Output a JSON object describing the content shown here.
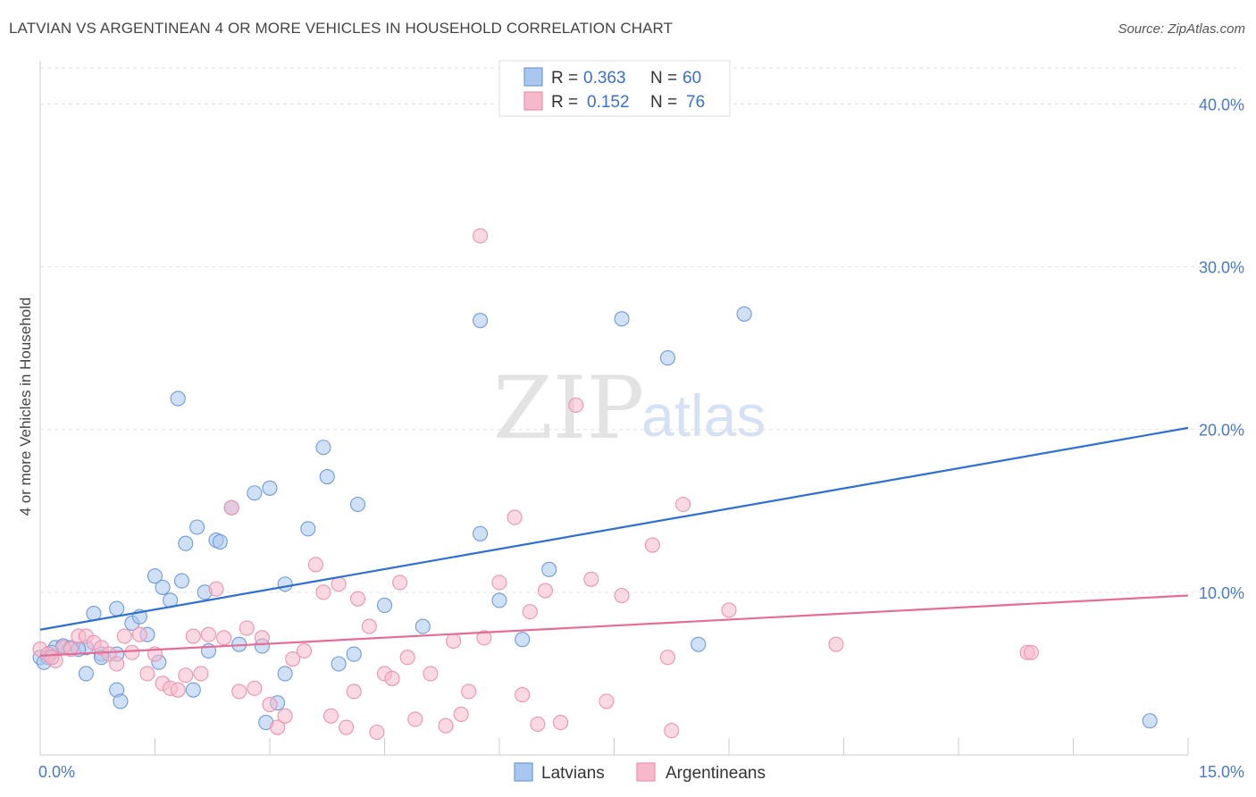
{
  "header": {
    "title": "LATVIAN VS ARGENTINEAN 4 OR MORE VEHICLES IN HOUSEHOLD CORRELATION CHART",
    "source": "Source: ZipAtlas.com"
  },
  "watermark": {
    "zip": "ZIP",
    "atlas": "atlas"
  },
  "legend": {
    "items": [
      {
        "r_label": "R =",
        "r_value": "0.363",
        "n_label": "N =",
        "n_value": "60",
        "color": "#a9c6ee"
      },
      {
        "r_label": "R =",
        "r_value": "0.152",
        "n_label": "N =",
        "n_value": "76",
        "color": "#f6b9cc"
      }
    ]
  },
  "bottom_legend": {
    "latvians": "Latvians",
    "argentineans": "Argentineans"
  },
  "colors": {
    "latvian_fill": "#a9c6ee",
    "latvian_stroke": "#6f9bd8",
    "latvian_line": "#2f6fd0",
    "argentinean_fill": "#f6b9cc",
    "argentinean_stroke": "#e994b0",
    "argentinean_line": "#e46d98",
    "tick": "#4a78c9"
  },
  "chart_data": {
    "type": "scatter",
    "title": "LATVIAN VS ARGENTINEAN 4 OR MORE VEHICLES IN HOUSEHOLD CORRELATION CHART",
    "xlabel": "",
    "ylabel": "4 or more Vehicles in Household",
    "xlim": [
      0,
      15
    ],
    "ylim": [
      0,
      42
    ],
    "x_tick_labels": [
      "0.0%",
      "15.0%"
    ],
    "y_ticks": [
      10,
      20,
      30,
      40
    ],
    "y_tick_labels": [
      "10.0%",
      "20.0%",
      "30.0%",
      "40.0%"
    ],
    "grid": "horizontal dashed",
    "legend_position": "top-center",
    "series": [
      {
        "name": "Latvians",
        "trend": [
          [
            0,
            7.7
          ],
          [
            15,
            20.1
          ]
        ],
        "points": [
          [
            0.0,
            6.0
          ],
          [
            0.1,
            6.0
          ],
          [
            0.2,
            6.6
          ],
          [
            0.3,
            6.7
          ],
          [
            0.4,
            6.6
          ],
          [
            0.6,
            6.6
          ],
          [
            0.6,
            5.0
          ],
          [
            0.8,
            6.2
          ],
          [
            0.8,
            6.0
          ],
          [
            0.7,
            8.7
          ],
          [
            1.0,
            6.2
          ],
          [
            1.0,
            9.0
          ],
          [
            1.0,
            4.0
          ],
          [
            1.05,
            3.3
          ],
          [
            1.2,
            8.1
          ],
          [
            1.3,
            8.5
          ],
          [
            1.4,
            7.4
          ],
          [
            1.5,
            11.0
          ],
          [
            1.55,
            5.7
          ],
          [
            1.6,
            10.3
          ],
          [
            1.7,
            9.5
          ],
          [
            1.8,
            21.9
          ],
          [
            1.85,
            10.7
          ],
          [
            1.9,
            13.0
          ],
          [
            2.0,
            4.0
          ],
          [
            2.05,
            14.0
          ],
          [
            2.15,
            10.0
          ],
          [
            2.2,
            6.4
          ],
          [
            2.3,
            13.2
          ],
          [
            2.35,
            13.1
          ],
          [
            2.5,
            15.2
          ],
          [
            2.6,
            6.8
          ],
          [
            2.8,
            16.1
          ],
          [
            2.9,
            6.7
          ],
          [
            3.0,
            16.4
          ],
          [
            3.1,
            3.2
          ],
          [
            3.2,
            5.0
          ],
          [
            3.2,
            10.5
          ],
          [
            3.5,
            13.9
          ],
          [
            3.7,
            18.9
          ],
          [
            3.75,
            17.1
          ],
          [
            3.9,
            5.6
          ],
          [
            4.1,
            6.2
          ],
          [
            4.15,
            15.4
          ],
          [
            4.5,
            9.2
          ],
          [
            5.0,
            7.9
          ],
          [
            5.75,
            13.6
          ],
          [
            5.75,
            26.7
          ],
          [
            6.0,
            9.5
          ],
          [
            6.3,
            7.1
          ],
          [
            6.65,
            11.4
          ],
          [
            7.6,
            26.8
          ],
          [
            8.2,
            24.4
          ],
          [
            8.6,
            6.8
          ],
          [
            9.2,
            27.1
          ],
          [
            14.5,
            2.1
          ],
          [
            2.95,
            2.0
          ],
          [
            0.05,
            5.7
          ],
          [
            0.15,
            6.3
          ],
          [
            0.5,
            6.5
          ]
        ]
      },
      {
        "name": "Argentineans",
        "trend": [
          [
            0,
            6.1
          ],
          [
            15,
            9.8
          ]
        ],
        "points": [
          [
            0.0,
            6.5
          ],
          [
            0.1,
            6.2
          ],
          [
            0.2,
            5.8
          ],
          [
            0.3,
            6.6
          ],
          [
            0.4,
            6.5
          ],
          [
            0.5,
            7.3
          ],
          [
            0.6,
            7.3
          ],
          [
            0.7,
            6.9
          ],
          [
            0.8,
            6.6
          ],
          [
            0.9,
            6.2
          ],
          [
            1.0,
            5.6
          ],
          [
            1.1,
            7.3
          ],
          [
            1.2,
            6.3
          ],
          [
            1.3,
            7.4
          ],
          [
            1.4,
            5.0
          ],
          [
            1.5,
            6.2
          ],
          [
            1.6,
            4.4
          ],
          [
            1.7,
            4.1
          ],
          [
            1.8,
            4.0
          ],
          [
            1.9,
            4.9
          ],
          [
            2.0,
            7.3
          ],
          [
            2.1,
            5.0
          ],
          [
            2.2,
            7.4
          ],
          [
            2.3,
            10.2
          ],
          [
            2.4,
            7.2
          ],
          [
            2.5,
            15.2
          ],
          [
            2.6,
            3.9
          ],
          [
            2.7,
            7.8
          ],
          [
            2.8,
            4.1
          ],
          [
            2.9,
            7.2
          ],
          [
            3.0,
            3.1
          ],
          [
            3.1,
            1.7
          ],
          [
            3.2,
            2.4
          ],
          [
            3.3,
            5.9
          ],
          [
            3.45,
            6.4
          ],
          [
            3.6,
            11.7
          ],
          [
            3.7,
            10.0
          ],
          [
            3.8,
            2.4
          ],
          [
            3.9,
            10.5
          ],
          [
            4.0,
            1.7
          ],
          [
            4.1,
            3.9
          ],
          [
            4.15,
            9.6
          ],
          [
            4.3,
            7.9
          ],
          [
            4.4,
            1.4
          ],
          [
            4.5,
            5.0
          ],
          [
            4.6,
            4.7
          ],
          [
            4.7,
            10.6
          ],
          [
            4.8,
            6.0
          ],
          [
            4.9,
            2.2
          ],
          [
            5.1,
            5.0
          ],
          [
            5.3,
            1.8
          ],
          [
            5.4,
            7.0
          ],
          [
            5.5,
            2.5
          ],
          [
            5.6,
            3.9
          ],
          [
            5.75,
            31.9
          ],
          [
            5.8,
            7.2
          ],
          [
            6.0,
            10.6
          ],
          [
            6.2,
            14.6
          ],
          [
            6.3,
            3.7
          ],
          [
            6.4,
            8.8
          ],
          [
            6.5,
            1.9
          ],
          [
            6.6,
            10.1
          ],
          [
            6.8,
            2.0
          ],
          [
            7.0,
            21.5
          ],
          [
            7.2,
            10.8
          ],
          [
            7.4,
            3.3
          ],
          [
            7.6,
            9.8
          ],
          [
            8.0,
            12.9
          ],
          [
            8.2,
            6.0
          ],
          [
            8.25,
            1.5
          ],
          [
            8.4,
            15.4
          ],
          [
            9.0,
            8.9
          ],
          [
            10.4,
            6.8
          ],
          [
            12.9,
            6.3
          ],
          [
            12.95,
            6.3
          ],
          [
            0.15,
            6.0
          ]
        ]
      }
    ]
  }
}
